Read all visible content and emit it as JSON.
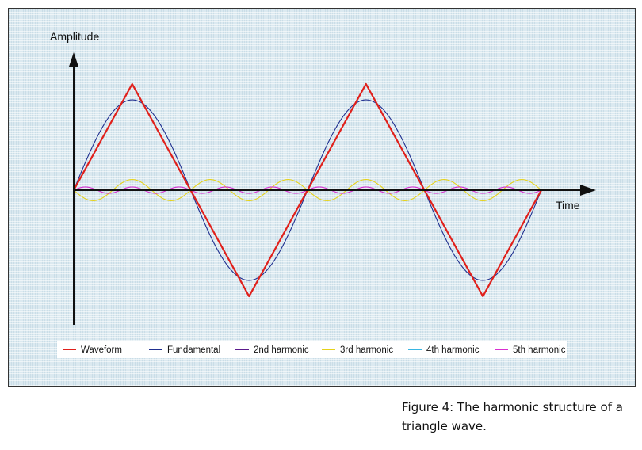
{
  "caption": "Figure 4: The harmonic structure of a triangle wave.",
  "chart_data": {
    "type": "line",
    "title": "",
    "xlabel": "Time",
    "ylabel": "Amplitude",
    "grid": false,
    "legend_position": "bottom",
    "x_range": [
      0,
      2
    ],
    "y_range": [
      -1,
      1
    ],
    "colors": {
      "background": "#dbe9f0",
      "axis": "#111111"
    },
    "series": [
      {
        "name": "Waveform",
        "color": "#e0201b",
        "kind": "triangle",
        "harmonic": 0,
        "amplitude": 1.0
      },
      {
        "name": "Fundamental",
        "color": "#1f2f8f",
        "kind": "sine",
        "harmonic": 1,
        "amplitude": 0.85,
        "phase": 0
      },
      {
        "name": "2nd harmonic",
        "color": "#5b1a8c",
        "kind": "sine",
        "harmonic": 2,
        "amplitude": 0.0,
        "phase": 0
      },
      {
        "name": "3rd harmonic",
        "color": "#e6d21a",
        "kind": "sine",
        "harmonic": 3,
        "amplitude": 0.1,
        "phase": 3.14159
      },
      {
        "name": "4th harmonic",
        "color": "#39b6e3",
        "kind": "sine",
        "harmonic": 4,
        "amplitude": 0.0,
        "phase": 0
      },
      {
        "name": "5th harmonic",
        "color": "#d92fd0",
        "kind": "sine",
        "harmonic": 5,
        "amplitude": 0.03,
        "phase": 0
      }
    ]
  }
}
